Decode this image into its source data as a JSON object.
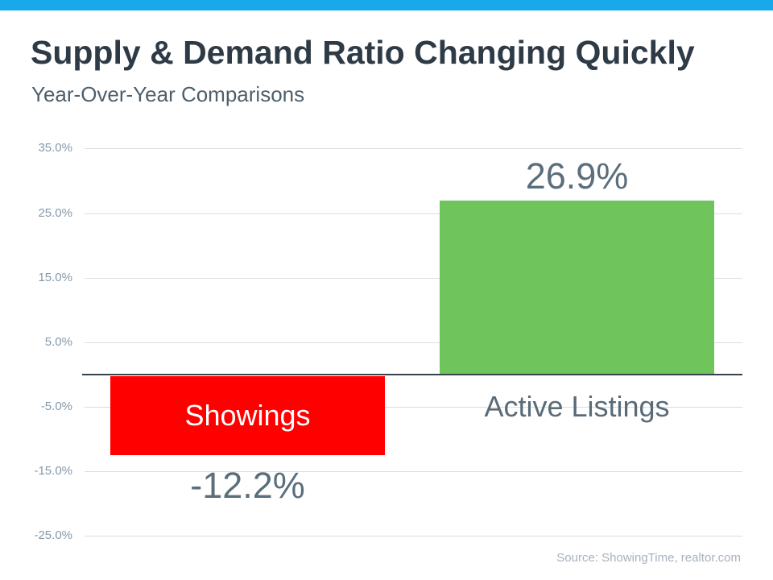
{
  "header": {
    "title": "Supply & Demand Ratio Changing Quickly",
    "subtitle": "Year-Over-Year Comparisons"
  },
  "footer": {
    "source": "Source: ShowingTime, realtor.com"
  },
  "colors": {
    "accent_bar": "#18a9eb",
    "title_text": "#2e3a45",
    "subtitle_text": "#4d5f6d",
    "tick_text": "#8798a8",
    "gridline": "#d8dce1",
    "axis_line": "#36424e",
    "value_text": "#5a6e7c",
    "category_text_outside": "#5a6b78",
    "category_text_inside": "#ffffff",
    "bar_negative": "#fe0000",
    "bar_positive": "#6fc45b",
    "source_text": "#a7b2bd"
  },
  "chart_data": {
    "type": "bar",
    "title": "Supply & Demand Ratio Changing Quickly",
    "subtitle": "Year-Over-Year Comparisons",
    "categories": [
      "Showings",
      "Active Listings"
    ],
    "values": [
      -12.2,
      26.9
    ],
    "value_labels": [
      "-12.2%",
      "26.9%"
    ],
    "bar_colors": [
      "#fe0000",
      "#6fc45b"
    ],
    "xlabel": "",
    "ylabel": "",
    "ylim": [
      -25,
      35
    ],
    "yticks": [
      35,
      25,
      15,
      5,
      -5,
      -15,
      -25
    ],
    "ytick_labels": [
      "35.0%",
      "25.0%",
      "15.0%",
      "5.0%",
      "-5.0%",
      "-15.0%",
      "-25.0%"
    ],
    "grid": true,
    "legend": false,
    "annotations": [
      "Source: ShowingTime, realtor.com"
    ]
  }
}
